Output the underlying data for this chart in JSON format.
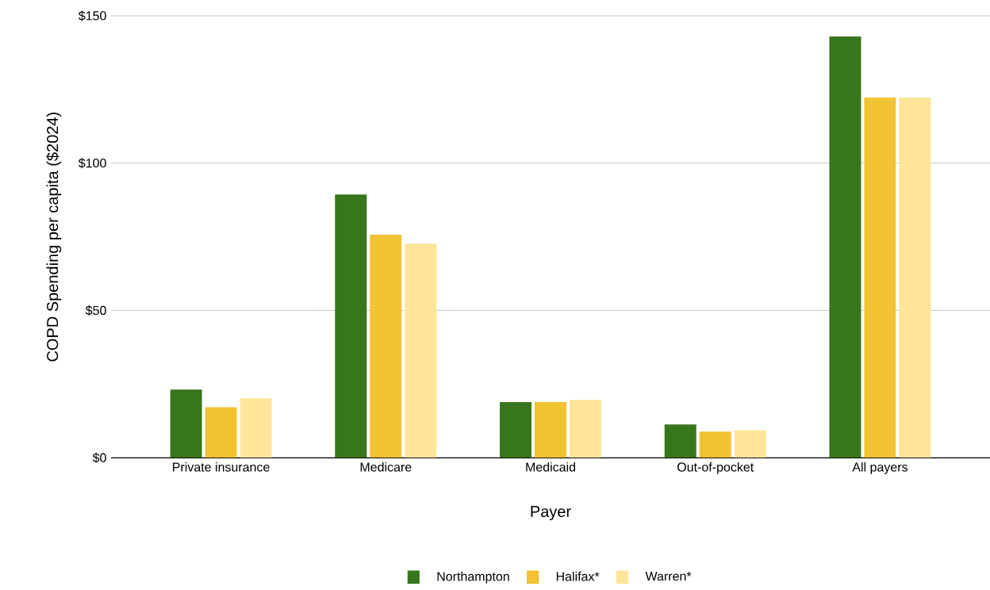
{
  "chart_data": {
    "type": "bar",
    "xlabel": "Payer",
    "ylabel": "COPD Spending per capita ($2024)",
    "categories": [
      "Private insurance",
      "Medicare",
      "Medicaid",
      "Out-of-pocket",
      "All payers"
    ],
    "series": [
      {
        "name": "Northampton",
        "color": "#38761d",
        "values": [
          23.2,
          89.4,
          18.9,
          11.3,
          143.0
        ]
      },
      {
        "name": "Halifax*",
        "color": "#f1c232",
        "values": [
          17.2,
          75.7,
          18.9,
          8.9,
          122.3
        ]
      },
      {
        "name": "Warren*",
        "color": "#ffe599",
        "values": [
          20.2,
          72.7,
          19.7,
          9.4,
          122.3
        ]
      }
    ],
    "ylim": [
      0,
      150
    ],
    "yticks": [
      {
        "value": 0,
        "label": "$0"
      },
      {
        "value": 50,
        "label": "$50"
      },
      {
        "value": 100,
        "label": "$100"
      },
      {
        "value": 150,
        "label": "$150"
      }
    ],
    "grid": "y",
    "legend": "bottom"
  }
}
